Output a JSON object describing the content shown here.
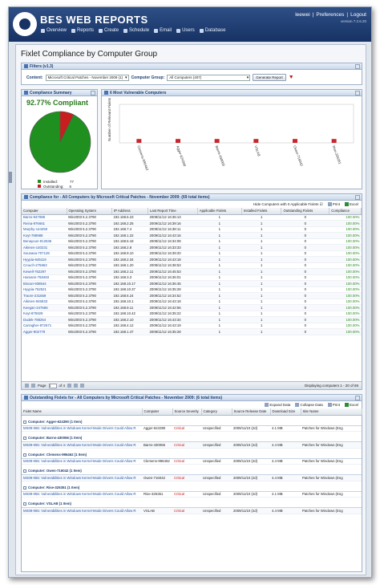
{
  "header": {
    "logo_text": "BES WEB REPORTS",
    "user": "leewei",
    "sep": "|",
    "preferences": "Preferences",
    "logout": "Logout",
    "version": "version 7.2.6.20",
    "nav": [
      {
        "label": "Overview",
        "icon": "overview-icon"
      },
      {
        "label": "Reports",
        "icon": "reports-icon"
      },
      {
        "label": "Create",
        "icon": "create-icon"
      },
      {
        "label": "Schedule",
        "icon": "schedule-icon"
      },
      {
        "label": "Email",
        "icon": "email-icon"
      },
      {
        "label": "Users",
        "icon": "users-icon"
      },
      {
        "label": "Database",
        "icon": "database-icon"
      }
    ]
  },
  "page_title": "Fixlet Compliance by Computer Group",
  "filters": {
    "title": "Filters (v1.3)",
    "content_label": "Content:",
    "content_value": "Microsoft Critical Patches - November 2009 (1)",
    "group_label": "Computer Group:",
    "group_value": "All Computers (407)",
    "generate_label": "Generate Report"
  },
  "summary": {
    "title": "Compliance Summary",
    "percent": "92.77% Compliant",
    "installed_label": "Installed:",
    "installed_value": "77",
    "outstanding_label": "Outstanding:",
    "outstanding_value": "6",
    "installed_color": "#1f8f1f",
    "outstanding_color": "#c81e1e"
  },
  "chart_data": {
    "type": "bar",
    "title": "6 Most Vulnerable Computers",
    "ylabel": "Number of Relevant Fixlets",
    "categories": [
      "Clemens-996462",
      "Agger-624390",
      "Barns-430066",
      "VSLAB",
      "Owen-716042",
      "Rise-326351"
    ],
    "values": [
      1,
      1,
      1,
      1,
      1,
      1
    ],
    "ylim": [
      0,
      10
    ],
    "bar_color": "#c8262a"
  },
  "compliance": {
    "title": "Compliance for - All Computers by Microsoft Critical Patches - November 2009: (69 total items)",
    "hide_label": "Hide Computers with 0 Applicable Fixlets",
    "print_label": "Print",
    "excel_label": "Excel",
    "columns": [
      "Computer",
      "Operating System",
      "IP Address",
      "Last Report Time",
      "Applicable Fixlets",
      "Installed Fixlets",
      "Outstanding Fixlets",
      "Compliance"
    ],
    "rows": [
      [
        "Barns-947088",
        "Win2003 5.2.3790",
        "192.168.6.23",
        "2009/11/12 16:36:13",
        "1",
        "1",
        "0",
        "100.00%"
      ],
      [
        "Reina-976661",
        "Win2003 5.2.3790",
        "192.168.2.25",
        "2009/11/12 16:39:16",
        "1",
        "1",
        "0",
        "100.00%"
      ],
      [
        "Murphy-144250",
        "Win2003 5.2.3790",
        "192.168.7.4",
        "2009/11/12 16:38:11",
        "1",
        "1",
        "0",
        "100.00%"
      ],
      [
        "Koyt-788988",
        "Win2003 5.2.3790",
        "192.168.1.22",
        "2009/11/12 16:43:16",
        "1",
        "1",
        "0",
        "100.00%"
      ],
      [
        "Benayoun-912536",
        "Win2003 5.2.3790",
        "192.168.5.18",
        "2009/11/12 16:34:08",
        "1",
        "1",
        "0",
        "100.00%"
      ],
      [
        "Aikmen-140231",
        "Win2003 5.2.3790",
        "192.168.2.8",
        "2009/11/12 16:33:33",
        "1",
        "1",
        "0",
        "100.00%"
      ],
      [
        "Sounasa-707128",
        "Win2003 5.2.3790",
        "192.168.9.10",
        "2009/11/12 16:39:20",
        "1",
        "1",
        "0",
        "100.00%"
      ],
      [
        "Hyypia-645119",
        "Win2003 5.2.3790",
        "192.168.2.34",
        "2009/11/12 16:43:18",
        "1",
        "1",
        "0",
        "100.00%"
      ],
      [
        "Crouch-275863",
        "Win2003 5.2.3790",
        "192.168.1.20",
        "2009/11/12 16:38:53",
        "1",
        "1",
        "0",
        "100.00%"
      ],
      [
        "Kewell-762297",
        "Win2003 5.2.3790",
        "192.168.2.11",
        "2009/11/12 16:45:53",
        "1",
        "1",
        "0",
        "100.00%"
      ],
      [
        "Hamann-758493",
        "Win2003 5.2.3790",
        "192.168.3.3",
        "2009/11/12 16:36:01",
        "1",
        "1",
        "0",
        "100.00%"
      ],
      [
        "Biscan-938544",
        "Win2003 5.2.3790",
        "192.168.10.17",
        "2009/11/12 16:36:45",
        "1",
        "1",
        "0",
        "100.00%"
      ],
      [
        "Hyypia-752521",
        "Win2003 5.2.3790",
        "192.168.10.37",
        "2009/11/12 16:35:28",
        "1",
        "1",
        "0",
        "100.00%"
      ],
      [
        "Traore-231659",
        "Win2003 5.2.3790",
        "192.168.6.24",
        "2009/11/12 16:34:52",
        "1",
        "1",
        "0",
        "100.00%"
      ],
      [
        "Aikmen-945933",
        "Win2003 5.2.3790",
        "192.168.10.1",
        "2009/11/12 16:43:18",
        "1",
        "1",
        "0",
        "100.00%"
      ],
      [
        "Keegan-247686",
        "Win2003 5.2.3790",
        "192.168.9.11",
        "2009/11/12 16:42:56",
        "1",
        "1",
        "0",
        "100.00%"
      ],
      [
        "Koyt-875929",
        "Win2003 5.2.3790",
        "192.168.10.42",
        "2009/11/12 16:35:22",
        "1",
        "1",
        "0",
        "100.00%"
      ],
      [
        "Dudek-788254",
        "Win2003 5.2.3790",
        "192.168.2.10",
        "2009/11/12 16:43:34",
        "1",
        "1",
        "0",
        "100.00%"
      ],
      [
        "Carragher-872671",
        "Win2003 5.2.3790",
        "192.168.4.12",
        "2009/11/12 16:43:19",
        "1",
        "1",
        "0",
        "100.00%"
      ],
      [
        "Agger-902779",
        "Win2003 5.2.3790",
        "192.168.1.47",
        "2009/11/12 16:35:28",
        "1",
        "1",
        "0",
        "100.00%"
      ]
    ],
    "pager_page_label": "Page",
    "pager_page_value": "1",
    "pager_of": "of 4",
    "pager_display": "Displaying computers 1 - 20 of 69"
  },
  "outstanding": {
    "title": "Outstanding Fixlets for - All Computers by Microsoft Critical Patches - November 2009: (6 total items)",
    "expand_label": "Expand Data",
    "collapse_label": "Collapse Data",
    "print_label": "Print",
    "excel_label": "Excel",
    "columns": [
      "Fixlet Name",
      "Computer",
      "Source Severity",
      "Category",
      "Source Release Date",
      "Download Size",
      "Site Name"
    ],
    "groups": [
      {
        "label": "Computer: Agger-624390 (1 Item)",
        "row": [
          "MS09-065: Vulnerabilities in Windows Kernel-Mode Drivers Could Allow R",
          "Agger-624390",
          "Critical",
          "Unspecified",
          "2009/11/10 (2d)",
          "4.1 MB",
          "Patches for Windows (Eng"
        ]
      },
      {
        "label": "Computer: Barns-430066 (1 Item)",
        "row": [
          "MS09-065: Vulnerabilities in Windows Kernel-Mode Drivers Could Allow R",
          "Barns-430066",
          "Critical",
          "Unspecified",
          "2009/11/10 (2d)",
          "4.4 MB",
          "Patches for Windows (Eng"
        ]
      },
      {
        "label": "Computer: Clemens-996462 (1 Item)",
        "row": [
          "MS09-065: Vulnerabilities in Windows Kernel-Mode Drivers Could Allow R",
          "Clemens-996462",
          "Critical",
          "Unspecified",
          "2009/11/10 (2d)",
          "4.4 MB",
          "Patches for Windows (Eng"
        ]
      },
      {
        "label": "Computer: Owen-716042 (1 Item)",
        "row": [
          "MS09-065: Vulnerabilities in Windows Kernel-Mode Drivers Could Allow R",
          "Owen-716042",
          "Critical",
          "Unspecified",
          "2009/11/10 (2d)",
          "4.4 MB",
          "Patches for Windows (Eng"
        ]
      },
      {
        "label": "Computer: Rise-326351 (1 Item)",
        "row": [
          "MS09-065: Vulnerabilities in Windows Kernel-Mode Drivers Could Allow R",
          "Rise-326351",
          "Critical",
          "Unspecified",
          "2009/11/10 (2d)",
          "4.1 MB",
          "Patches for Windows (Eng"
        ]
      },
      {
        "label": "Computer: VSLAB (1 Item)",
        "row": [
          "MS09-065: Vulnerabilities in Windows Kernel-Mode Drivers Could Allow R",
          "VSLAB",
          "Critical",
          "Unspecified",
          "2009/11/10 (2d)",
          "4.4 MB",
          "Patches for Windows (Eng"
        ]
      }
    ]
  }
}
